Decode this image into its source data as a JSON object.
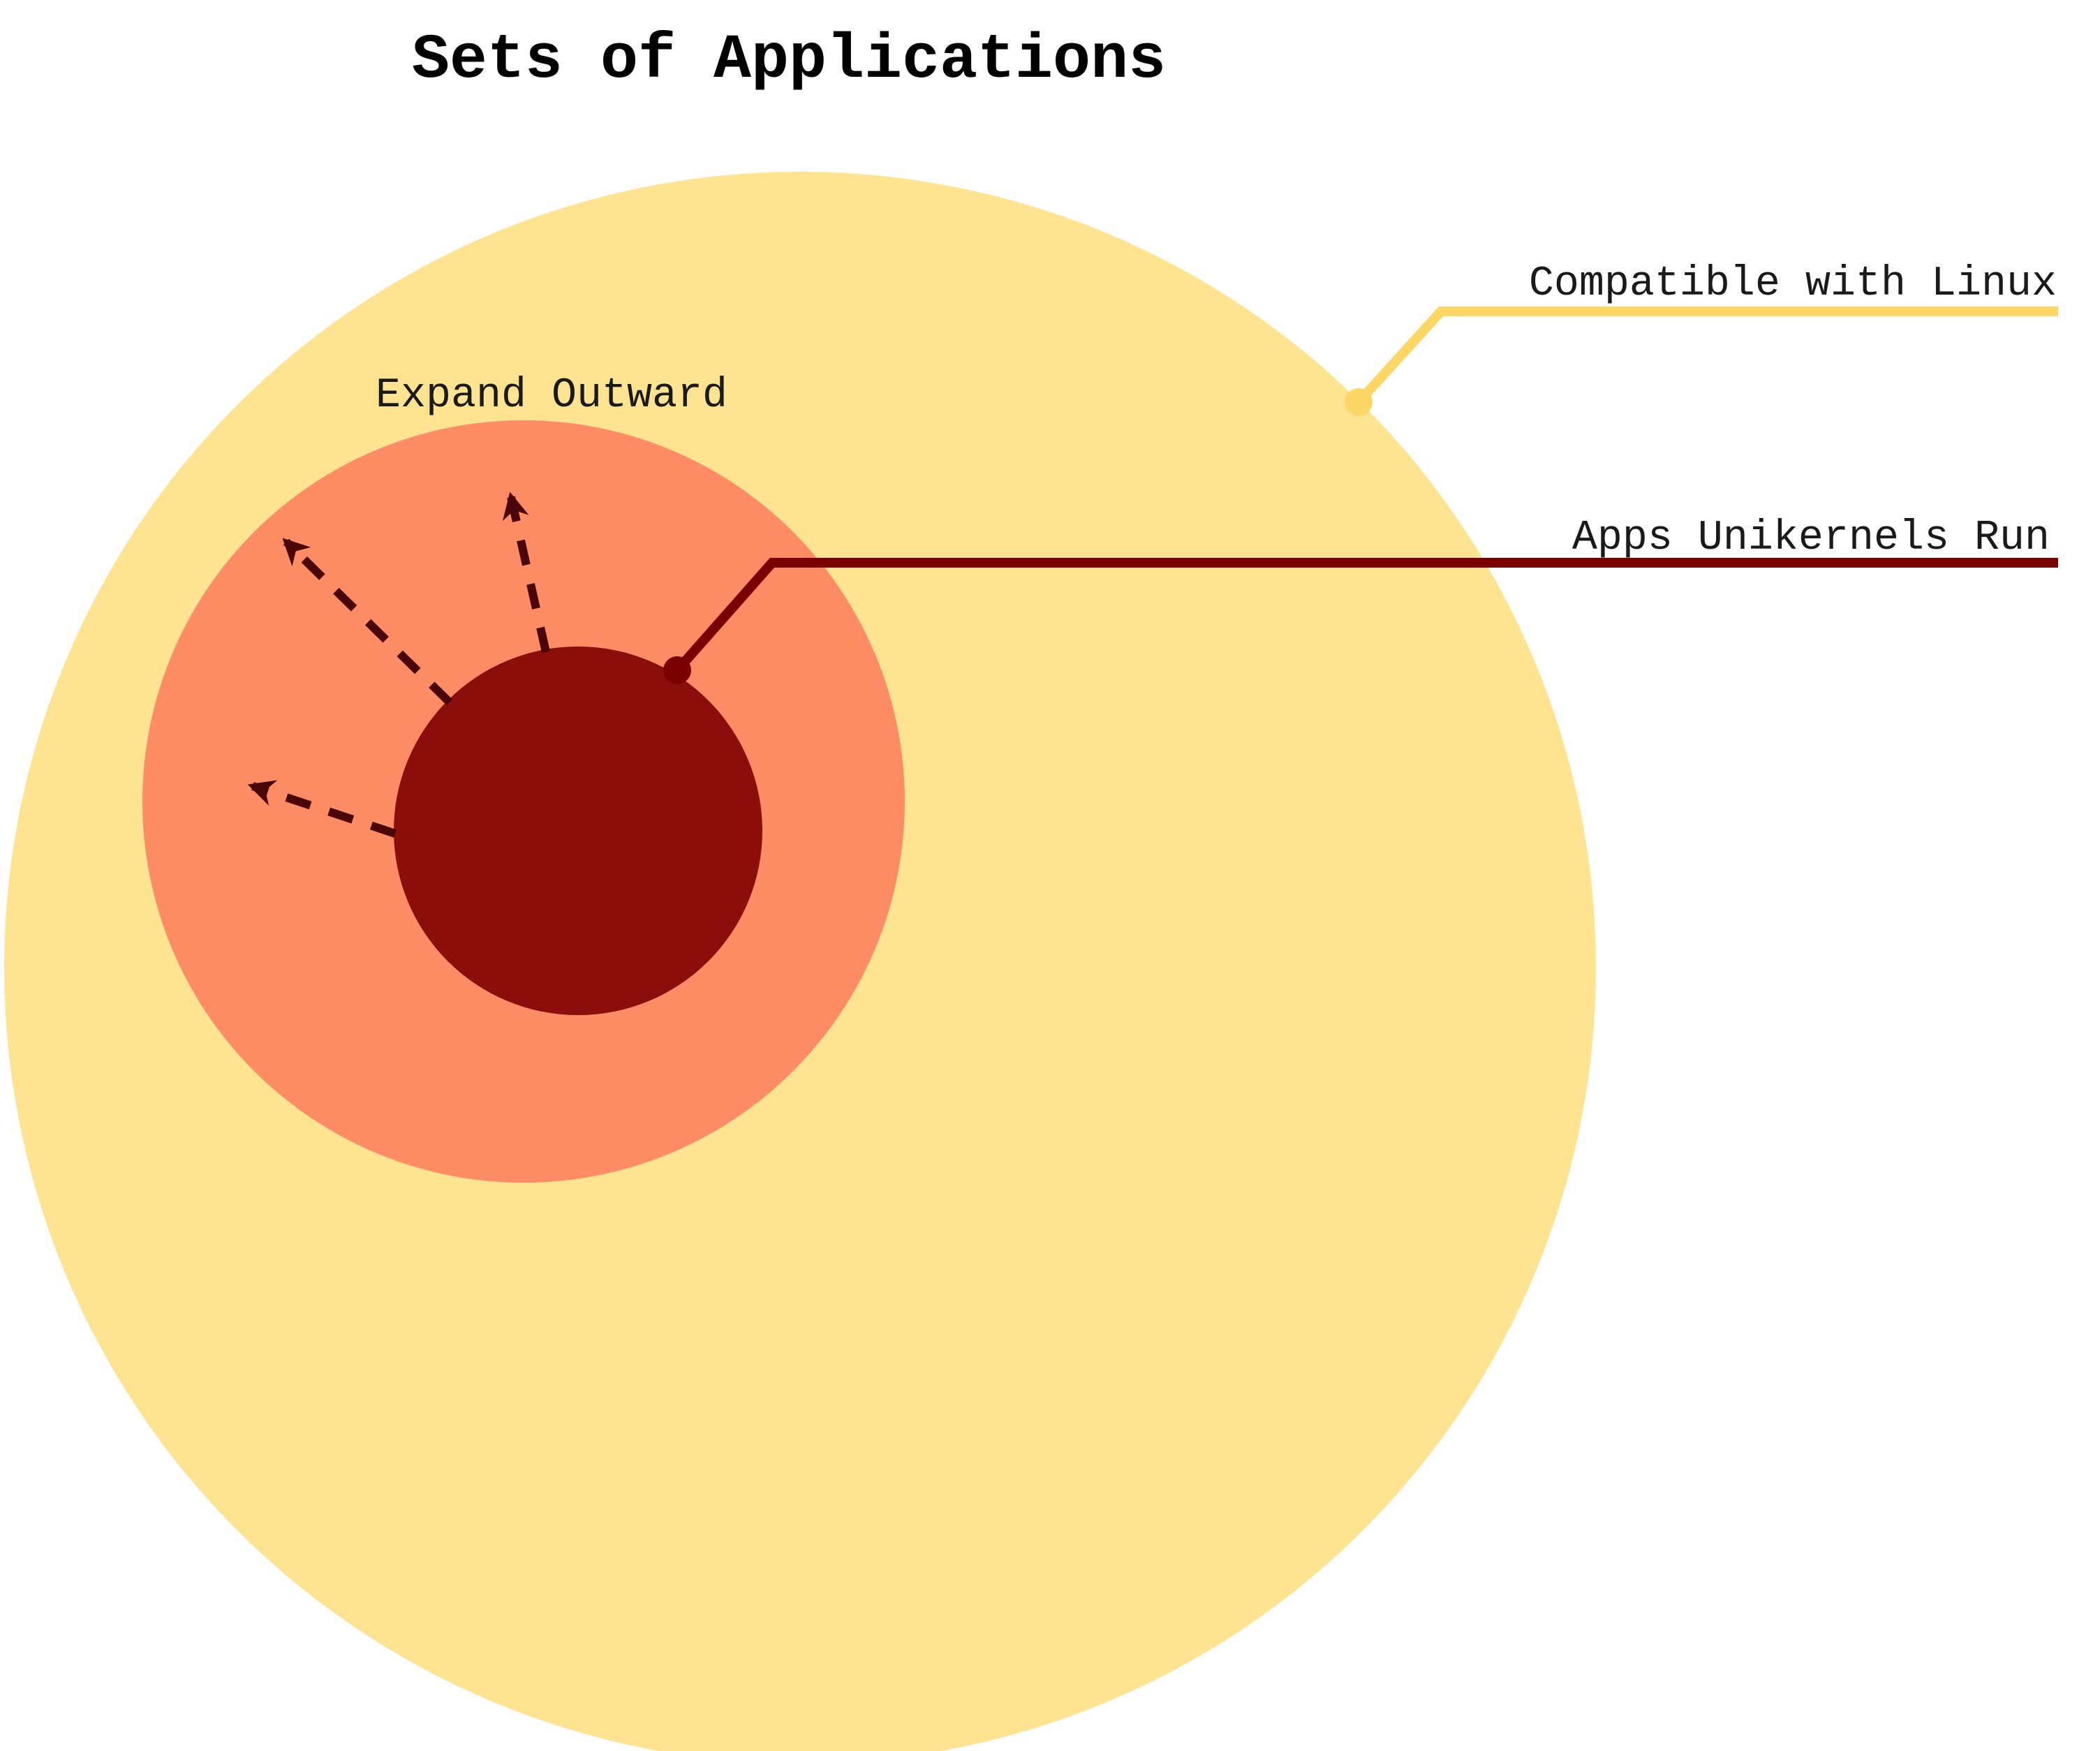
{
  "title": "Sets of Applications",
  "sets": {
    "outer": {
      "label": "Compatible with Linux",
      "color": "#FEE391",
      "leader_color": "#FDD766"
    },
    "middle": {
      "color": "#FE8C65"
    },
    "inner": {
      "label": "Apps Unikernels Run",
      "color": "#8B0E0A",
      "leader_color": "#7A0000"
    }
  },
  "annotation": {
    "label": "Expand Outward",
    "arrow_color": "#4A0606"
  }
}
